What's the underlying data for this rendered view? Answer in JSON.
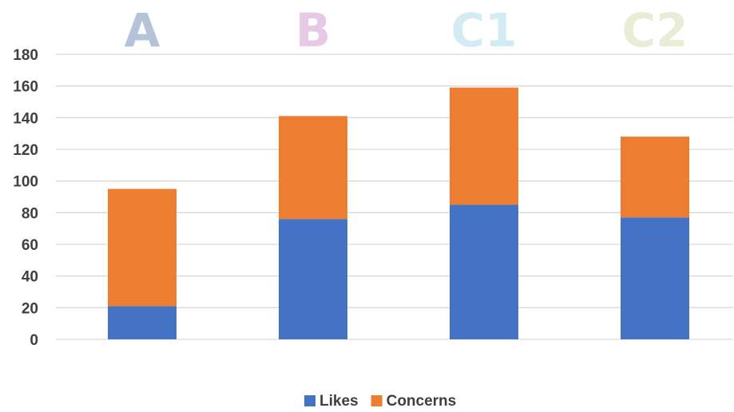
{
  "chart_data": {
    "type": "bar",
    "stacked": true,
    "categories": [
      "A",
      "B",
      "C1",
      "C2"
    ],
    "category_colors": [
      "#b4c3d7",
      "#e5c9e5",
      "#d3ecf3",
      "#e8eed6"
    ],
    "series": [
      {
        "name": "Likes",
        "values": [
          21,
          76,
          85,
          77
        ],
        "color": "#4472c4"
      },
      {
        "name": "Concerns",
        "values": [
          74,
          65,
          74,
          51
        ],
        "color": "#ed7d31"
      }
    ],
    "y_ticks": [
      "0",
      "20",
      "40",
      "60",
      "80",
      "100",
      "120",
      "140",
      "160",
      "180"
    ],
    "ylim": [
      0,
      180
    ],
    "grid": true,
    "legend_position": "bottom"
  }
}
